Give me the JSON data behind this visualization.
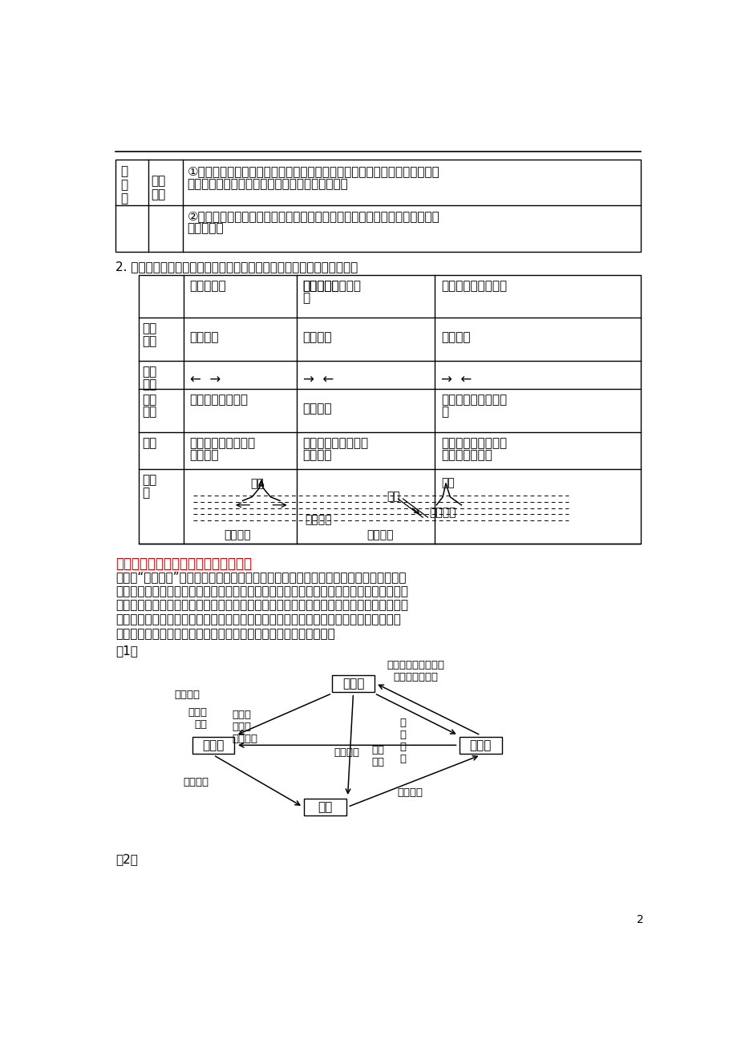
{
  "bg_color": "#ffffff",
  "page_number": "2",
  "red_section_title": "二、岩石圈物质循环模式图判读的窍门",
  "section1_title": "2. 板块相对移动而发生的彼此碰撞或张裂，形成了地球表面的基本面貌。",
  "label_1": "（1）",
  "label_2": "（2）"
}
